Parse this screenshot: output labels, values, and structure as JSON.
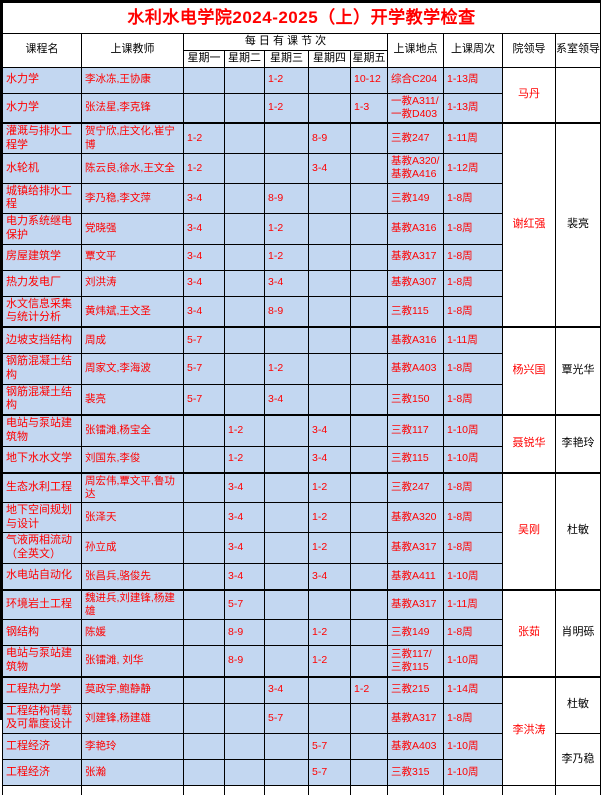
{
  "title": "水利水电学院2024-2025（上）开学教学检查",
  "colors": {
    "cell_bg": "#c3d7f1",
    "data_text": "#ff0000",
    "title_text": "#ff0000",
    "border": "#000000",
    "dept_leader_text": "#000000"
  },
  "header": {
    "course": "课程名",
    "teacher": "上课教师",
    "daily_group": "每 日 有 课 节 次",
    "days": [
      "星期一",
      "星期二",
      "星期三",
      "星期四",
      "星期五"
    ],
    "location": "上课地点",
    "weeks": "上课周次",
    "college_leader": "院领导",
    "dept_leader": "系室领导"
  },
  "rows": [
    {
      "course": "水力学",
      "teacher": "李冰冻,王协康",
      "days": [
        "",
        "",
        "1-2",
        "",
        "10-12"
      ],
      "location": "综合C204",
      "weeks": "1-13周"
    },
    {
      "course": "水力学",
      "teacher": "张法星,李克锋",
      "days": [
        "",
        "",
        "1-2",
        "",
        "1-3"
      ],
      "location": "一教A311/一教D403",
      "weeks": "1-13周"
    },
    {
      "course": "灌溉与排水工程学",
      "teacher": "贺宁欣,庄文化,崔宁博",
      "days": [
        "1-2",
        "",
        "",
        "8-9",
        ""
      ],
      "location": "三教247",
      "weeks": "1-11周"
    },
    {
      "course": "水轮机",
      "teacher": "陈云良,徐水,王文全",
      "days": [
        "1-2",
        "",
        "",
        "3-4",
        ""
      ],
      "location": "基教A320/基教A416",
      "weeks": "1-12周"
    },
    {
      "course": "城镇给排水工程",
      "teacher": "李乃稳,李文萍",
      "days": [
        "3-4",
        "",
        "8-9",
        "",
        ""
      ],
      "location": "三教149",
      "weeks": "1-8周"
    },
    {
      "course": "电力系统继电保护",
      "teacher": "党晓强",
      "days": [
        "3-4",
        "",
        "1-2",
        "",
        ""
      ],
      "location": "基教A316",
      "weeks": "1-8周"
    },
    {
      "course": "房屋建筑学",
      "teacher": "覃文平",
      "days": [
        "3-4",
        "",
        "1-2",
        "",
        ""
      ],
      "location": "基教A317",
      "weeks": "1-8周"
    },
    {
      "course": "热力发电厂",
      "teacher": "刘洪涛",
      "days": [
        "3-4",
        "",
        "3-4",
        "",
        ""
      ],
      "location": "基教A307",
      "weeks": "1-8周"
    },
    {
      "course": "水文信息采集与统计分析",
      "teacher": "黄炜斌,王文圣",
      "days": [
        "3-4",
        "",
        "8-9",
        "",
        ""
      ],
      "location": "三教115",
      "weeks": "1-8周"
    },
    {
      "course": "边坡支挡结构",
      "teacher": "周成",
      "days": [
        "5-7",
        "",
        "",
        "",
        ""
      ],
      "location": "基教A316",
      "weeks": "1-11周"
    },
    {
      "course": "钢筋混凝土结构",
      "teacher": "周家文,李海波",
      "days": [
        "5-7",
        "",
        "1-2",
        "",
        ""
      ],
      "location": "基教A403",
      "weeks": "1-8周"
    },
    {
      "course": "钢筋混凝土结构",
      "teacher": "裴亮",
      "days": [
        "5-7",
        "",
        "3-4",
        "",
        ""
      ],
      "location": "三教150",
      "weeks": "1-8周"
    },
    {
      "course": "电站与泵站建筑物",
      "teacher": "张镭滩,杨宝全",
      "days": [
        "",
        "1-2",
        "",
        "3-4",
        ""
      ],
      "location": "三教117",
      "weeks": "1-10周"
    },
    {
      "course": "地下水水文学",
      "teacher": "刘国东,李俊",
      "days": [
        "",
        "1-2",
        "",
        "3-4",
        ""
      ],
      "location": "三教115",
      "weeks": "1-10周"
    },
    {
      "course": "生态水利工程",
      "teacher": "周宏伟,覃文平,鲁功达",
      "days": [
        "",
        "3-4",
        "",
        "1-2",
        ""
      ],
      "location": "三教247",
      "weeks": "1-8周"
    },
    {
      "course": "地下空间规划与设计",
      "teacher": "张泽天",
      "days": [
        "",
        "3-4",
        "",
        "1-2",
        ""
      ],
      "location": "基教A320",
      "weeks": "1-8周"
    },
    {
      "course": "气液两相流动（全英文）",
      "teacher": "孙立成",
      "days": [
        "",
        "3-4",
        "",
        "1-2",
        ""
      ],
      "location": "基教A317",
      "weeks": "1-8周"
    },
    {
      "course": "水电站自动化",
      "teacher": "张昌兵,骆俊先",
      "days": [
        "",
        "3-4",
        "",
        "3-4",
        ""
      ],
      "location": "基教A411",
      "weeks": "1-10周"
    },
    {
      "course": "环境岩土工程",
      "teacher": "魏进兵,刘建锋,杨建雄",
      "days": [
        "",
        "5-7",
        "",
        "",
        ""
      ],
      "location": "基教A317",
      "weeks": "1-11周"
    },
    {
      "course": "钢结构",
      "teacher": "陈媛",
      "days": [
        "",
        "8-9",
        "",
        "1-2",
        ""
      ],
      "location": "三教149",
      "weeks": "1-8周"
    },
    {
      "course": "电站与泵站建筑物",
      "teacher": "张镭滩, 刘华",
      "days": [
        "",
        "8-9",
        "",
        "1-2",
        ""
      ],
      "location": "三教117/三教115",
      "weeks": "1-10周"
    },
    {
      "course": "工程热力学",
      "teacher": "莫政宇,鲍静静",
      "days": [
        "",
        "",
        "3-4",
        "",
        "1-2"
      ],
      "location": "三教215",
      "weeks": "1-14周"
    },
    {
      "course": "工程结构荷载及可靠度设计",
      "teacher": "刘建锋,杨建雄",
      "days": [
        "",
        "",
        "5-7",
        "",
        ""
      ],
      "location": "基教A317",
      "weeks": "1-8周"
    },
    {
      "course": "工程经济",
      "teacher": "李艳玲",
      "days": [
        "",
        "",
        "",
        "5-7",
        ""
      ],
      "location": "基教A403",
      "weeks": "1-10周"
    },
    {
      "course": "工程经济",
      "teacher": "张瀚",
      "days": [
        "",
        "",
        "",
        "5-7",
        ""
      ],
      "location": "三教315",
      "weeks": "1-10周"
    }
  ],
  "college_leaders": [
    {
      "name": "马丹",
      "rows": 2
    },
    {
      "name": "谢红强",
      "rows": 7
    },
    {
      "name": "杨兴国",
      "rows": 3
    },
    {
      "name": "聂锐华",
      "rows": 2
    },
    {
      "name": "吴刚",
      "rows": 4
    },
    {
      "name": "张茹",
      "rows": 3
    },
    {
      "name": "李洪涛",
      "rows": 4
    }
  ],
  "dept_leaders": [
    {
      "name": "",
      "rows": 2
    },
    {
      "name": "裴亮",
      "rows": 7
    },
    {
      "name": "覃光华",
      "rows": 3
    },
    {
      "name": "李艳玲",
      "rows": 2
    },
    {
      "name": "杜敏",
      "rows": 4
    },
    {
      "name": "肖明砾",
      "rows": 3
    },
    {
      "name": "杜敏",
      "rows": 2
    },
    {
      "name": "李乃稳",
      "rows": 2
    }
  ]
}
